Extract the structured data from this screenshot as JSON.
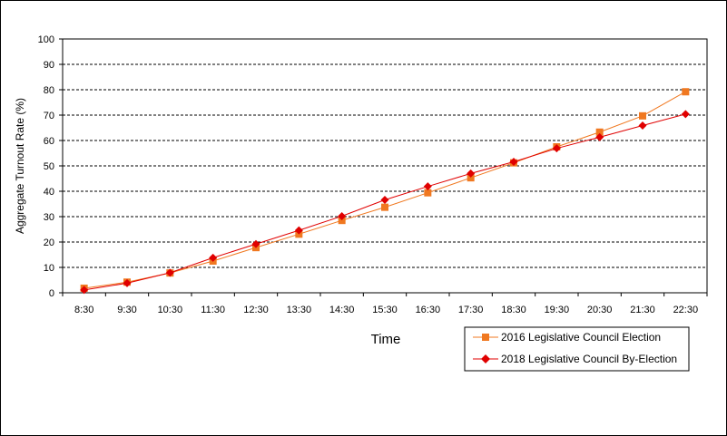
{
  "chart_data": {
    "type": "line",
    "title": "",
    "xlabel": "Time",
    "ylabel": "Aggregate Turnout Rate (%)",
    "ylim": [
      0,
      100
    ],
    "yticks": [
      0,
      10,
      20,
      30,
      40,
      50,
      60,
      70,
      80,
      90,
      100
    ],
    "grid": "horizontal-dashed",
    "legend_position": "bottom-right",
    "categories": [
      "8:30",
      "9:30",
      "10:30",
      "11:30",
      "12:30",
      "13:30",
      "14:30",
      "15:30",
      "16:30",
      "17:30",
      "18:30",
      "19:30",
      "20:30",
      "21:30",
      "22:30"
    ],
    "series": [
      {
        "name": "2016 Legislative Council Election",
        "color": "#F07820",
        "marker": "square",
        "values": [
          1.8,
          4.2,
          7.8,
          12.5,
          17.8,
          23.1,
          28.5,
          33.7,
          39.4,
          45.3,
          51.2,
          57.5,
          63.3,
          69.7,
          79.2
        ]
      },
      {
        "name": "2018 Legislative Council By-Election",
        "color": "#E00000",
        "marker": "diamond",
        "values": [
          1.1,
          3.8,
          7.9,
          13.8,
          19.2,
          24.6,
          30.2,
          36.6,
          41.9,
          47.0,
          51.6,
          56.9,
          61.3,
          65.9,
          70.4
        ]
      }
    ]
  }
}
